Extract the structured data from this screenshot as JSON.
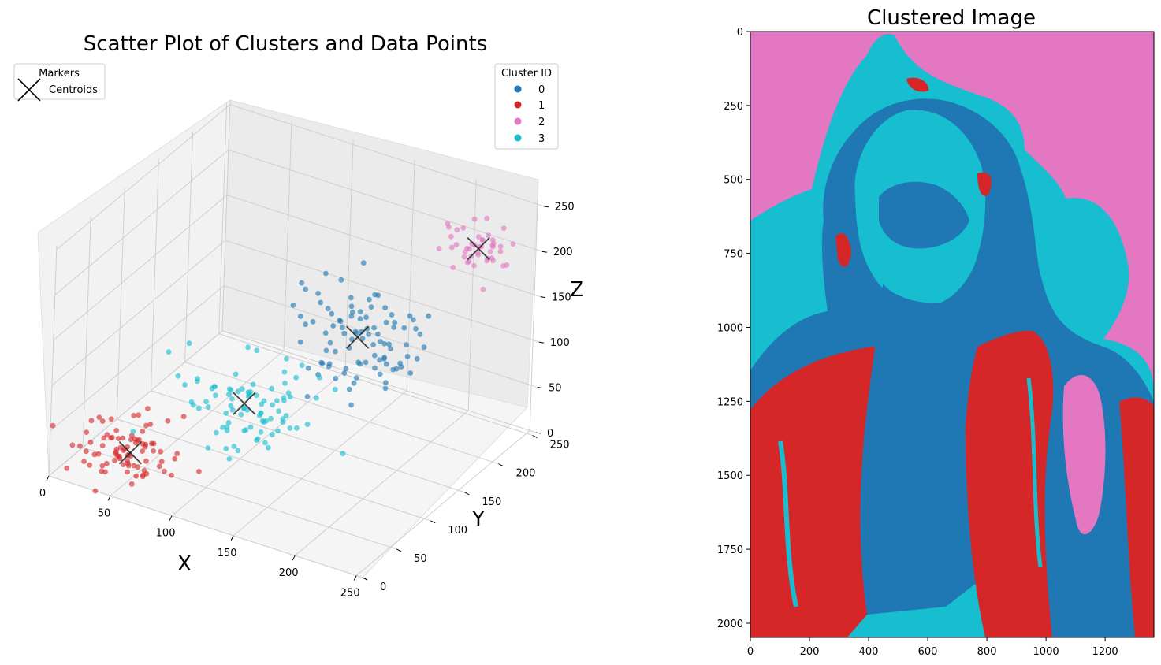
{
  "chart_data": [
    {
      "type": "scatter",
      "title": "Scatter Plot of Clusters and Data Points",
      "xlabel": "X",
      "ylabel": "Y",
      "zlabel": "Z",
      "xlim": [
        0,
        255
      ],
      "ylim": [
        0,
        255
      ],
      "zlim": [
        0,
        255
      ],
      "x_ticks": [
        "0",
        "50",
        "100",
        "150",
        "200",
        "250"
      ],
      "y_ticks": [
        "0",
        "50",
        "100",
        "150",
        "200",
        "250"
      ],
      "z_ticks": [
        "0",
        "50",
        "100",
        "150",
        "200",
        "250"
      ],
      "grid": true,
      "legend_clusters": {
        "title": "Cluster ID",
        "placement": "top-right",
        "entries": [
          {
            "label": "0",
            "color": "#1f77b4"
          },
          {
            "label": "1",
            "color": "#d62728"
          },
          {
            "label": "2",
            "color": "#e377c2"
          },
          {
            "label": "3",
            "color": "#17becf"
          }
        ]
      },
      "legend_markers": {
        "title": "Markers",
        "placement": "top-left",
        "entries": [
          {
            "label": "Centroids",
            "marker": "x",
            "color": "#000000"
          }
        ]
      },
      "series": [
        {
          "cluster": 0,
          "color": "#1f77b4",
          "center": [
            170,
            140,
            140
          ],
          "spread": [
            26,
            22,
            26
          ],
          "count": 95
        },
        {
          "cluster": 1,
          "color": "#d62728",
          "center": [
            50,
            28,
            30
          ],
          "spread": [
            20,
            16,
            16
          ],
          "count": 85
        },
        {
          "cluster": 2,
          "color": "#e377c2",
          "center": [
            225,
            215,
            215
          ],
          "spread": [
            12,
            12,
            12
          ],
          "count": 45
        },
        {
          "cluster": 3,
          "color": "#17becf",
          "center": [
            110,
            85,
            75
          ],
          "spread": [
            26,
            22,
            24
          ],
          "count": 90
        }
      ],
      "centroids": [
        {
          "cluster": 0,
          "x": 170,
          "y": 140,
          "z": 140
        },
        {
          "cluster": 1,
          "x": 50,
          "y": 28,
          "z": 30
        },
        {
          "cluster": 2,
          "x": 225,
          "y": 215,
          "z": 215
        },
        {
          "cluster": 3,
          "x": 110,
          "y": 85,
          "z": 75
        }
      ]
    },
    {
      "type": "heatmap",
      "title": "Clustered Image",
      "x_ticks": [
        "0",
        "200",
        "400",
        "600",
        "800",
        "1000",
        "1200"
      ],
      "y_ticks": [
        "0",
        "250",
        "500",
        "750",
        "1000",
        "1250",
        "1500",
        "1750",
        "2000"
      ],
      "xlim": [
        0,
        1365
      ],
      "ylim": [
        2048,
        0
      ],
      "cluster_colors": [
        "#1f77b4",
        "#d62728",
        "#e377c2",
        "#17becf"
      ]
    }
  ]
}
